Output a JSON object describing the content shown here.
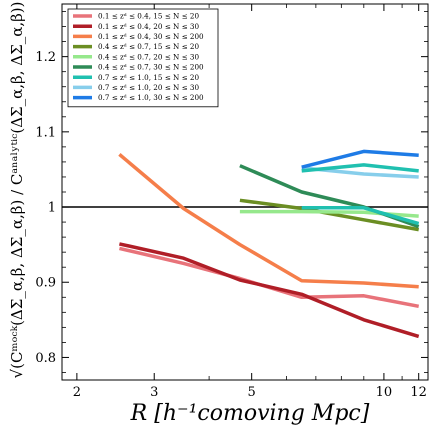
{
  "chart_data": {
    "type": "line",
    "xlabel": "R [h⁻¹comoving Mpc]",
    "ylabel": "√(Cᵐᵒᶜᵏ(ΔΣ_α,β, ΔΣ_α,β) / Cᵃⁿᵃˡʸᵗⁱᶜ(ΔΣ_α,β, ΔΣ_α,β))",
    "x_scale": "log",
    "xlim": [
      1.85,
      12.6
    ],
    "ylim": [
      0.77,
      1.27
    ],
    "x_ticks": [
      2,
      3,
      5,
      10,
      12
    ],
    "y_ticks": [
      0.8,
      0.9,
      1.0,
      1.1,
      1.2
    ],
    "x_tick_labels": [
      "2",
      "3",
      "5",
      "10",
      "12"
    ],
    "y_tick_labels": [
      "0.8",
      "0.9",
      "1",
      "1.1",
      "1.2"
    ],
    "reference_line": 1.0,
    "legend_position": "top-left",
    "series": [
      {
        "name": "0.1 ≤ z_d ≤ 0.4, 15 ≤ N ≤ 20",
        "color": "#e8737a",
        "x": [
          2.5,
          3.5,
          4.7,
          6.5,
          9,
          12
        ],
        "y": [
          0.945,
          0.925,
          0.905,
          0.88,
          0.882,
          0.868
        ]
      },
      {
        "name": "0.1 ≤ z_d ≤ 0.4, 20 ≤ N ≤ 30",
        "color": "#b01e27",
        "x": [
          2.5,
          3.5,
          4.7,
          6.5,
          9,
          12
        ],
        "y": [
          0.951,
          0.932,
          0.903,
          0.884,
          0.85,
          0.828
        ]
      },
      {
        "name": "0.1 ≤ z_d ≤ 0.4, 30 ≤ N ≤ 200",
        "color": "#f57e4a",
        "x": [
          2.5,
          3.5,
          4.7,
          6.5,
          9,
          12
        ],
        "y": [
          1.07,
          0.998,
          0.95,
          0.902,
          0.899,
          0.894
        ]
      },
      {
        "name": "0.4 ≤ z_d ≤ 0.7, 15 ≤ N ≤ 20",
        "color": "#6b8e23",
        "x": [
          4.7,
          6.5,
          9,
          12
        ],
        "y": [
          1.009,
          0.998,
          0.983,
          0.97
        ]
      },
      {
        "name": "0.4 ≤ z_d ≤ 0.7, 20 ≤ N ≤ 30",
        "color": "#96e88c",
        "x": [
          4.7,
          6.5,
          9,
          12
        ],
        "y": [
          0.994,
          0.994,
          0.993,
          0.988
        ]
      },
      {
        "name": "0.4 ≤ z_d ≤ 0.7, 30 ≤ N ≤ 200",
        "color": "#2e8b57",
        "x": [
          4.7,
          6.5,
          9,
          12
        ],
        "y": [
          1.055,
          1.02,
          1.0,
          0.974
        ]
      },
      {
        "name": "0.7 ≤ z_d ≤ 1.0, 15 ≤ N ≤ 20",
        "color": "#20c0b0",
        "x": [
          6.5,
          9,
          12
        ],
        "y": [
          0.999,
          0.999,
          0.978
        ]
      },
      {
        "name": "0.7 ≤ z_d ≤ 1.0, 20 ≤ N ≤ 30",
        "color": "#87ceeb",
        "x": [
          6.5,
          9,
          12
        ],
        "y": [
          1.052,
          1.044,
          1.04
        ]
      },
      {
        "name": "0.7 ≤ z_d ≤ 1.0, 30 ≤ N ≤ 200",
        "color": "#1e7be6",
        "x": [
          6.5,
          9,
          12
        ],
        "y": [
          1.053,
          1.074,
          1.069
        ]
      }
    ],
    "extra_series_colors": {
      "teal_15_20_line2": "#20c0b0"
    },
    "extra_series": [
      {
        "color": "#20c0b0",
        "x": [
          6.5,
          9,
          12
        ],
        "y": [
          1.048,
          1.056,
          1.048
        ]
      }
    ],
    "legend_labels_display": [
      "0.1 ≤ zᵈ ≤ 0.4, 15 ≤ N ≤ 20",
      "0.1 ≤ zᵈ ≤ 0.4, 20 ≤ N ≤ 30",
      "0.1 ≤ zᵈ ≤ 0.4, 30 ≤ N ≤ 200",
      "0.4 ≤ zᵈ ≤ 0.7, 15 ≤ N ≤ 20",
      "0.4 ≤ zᵈ ≤ 0.7, 20 ≤ N ≤ 30",
      "0.4 ≤ zᵈ ≤ 0.7, 30 ≤ N ≤ 200",
      "0.7 ≤ zᵈ ≤ 1.0, 15 ≤ N ≤ 20",
      "0.7 ≤ zᵈ ≤ 1.0, 20 ≤ N ≤ 30",
      "0.7 ≤ zᵈ ≤ 1.0, 30 ≤ N ≤ 200"
    ]
  }
}
